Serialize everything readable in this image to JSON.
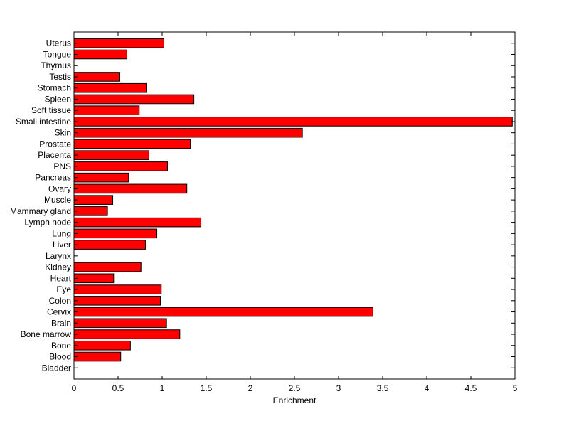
{
  "chart_data": {
    "type": "bar",
    "orientation": "horizontal",
    "categories": [
      "Bladder",
      "Blood",
      "Bone",
      "Bone marrow",
      "Brain",
      "Cervix",
      "Colon",
      "Eye",
      "Heart",
      "Kidney",
      "Larynx",
      "Liver",
      "Lung",
      "Lymph node",
      "Mammary gland",
      "Muscle",
      "Ovary",
      "Pancreas",
      "PNS",
      "Placenta",
      "Prostate",
      "Skin",
      "Small intestine",
      "Soft tissue",
      "Spleen",
      "Stomach",
      "Testis",
      "Thymus",
      "Tongue",
      "Uterus"
    ],
    "values": [
      0,
      0.53,
      0.64,
      1.2,
      1.05,
      3.39,
      0.98,
      0.99,
      0.45,
      0.76,
      0,
      0.81,
      0.94,
      1.44,
      0.38,
      0.44,
      1.28,
      0.62,
      1.06,
      0.85,
      1.32,
      2.59,
      4.97,
      0.74,
      1.36,
      0.82,
      0.52,
      0,
      0.6,
      1.02
    ],
    "title": "",
    "xlabel": "Enrichment",
    "ylabel": "",
    "xlim": [
      0,
      5
    ],
    "xticks": [
      "0",
      "0.5",
      "1",
      "1.5",
      "2",
      "2.5",
      "3",
      "3.5",
      "4",
      "4.5",
      "5"
    ],
    "grid": false,
    "bar_color": "#ff0000",
    "edge_color": "#000000"
  }
}
